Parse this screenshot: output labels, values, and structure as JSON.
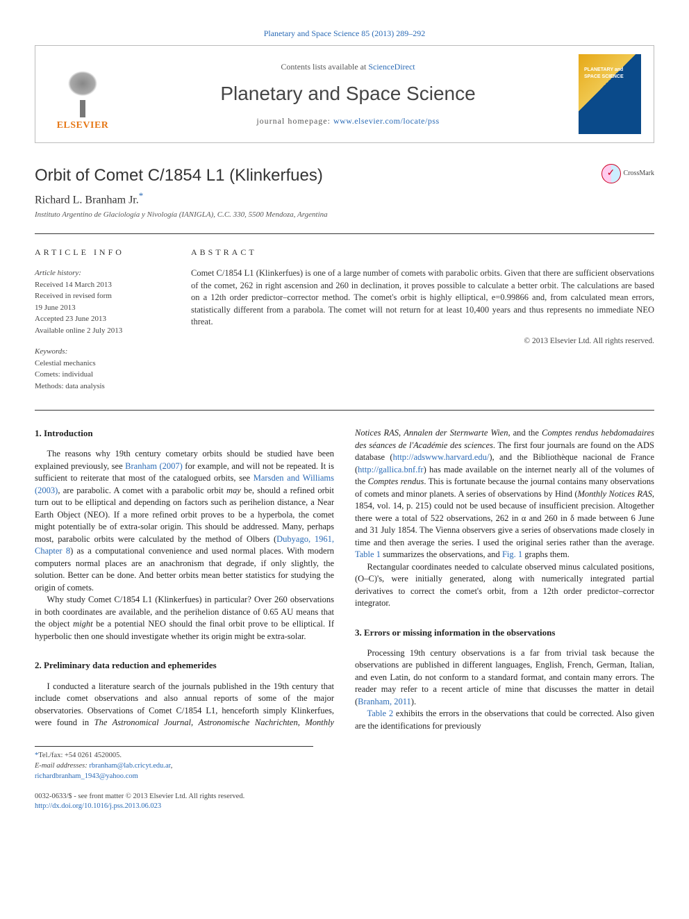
{
  "journalInfoLink": "Planetary and Space Science 85 (2013) 289–292",
  "header": {
    "publisherName": "ELSEVIER",
    "contentsPrefix": "Contents lists available at ",
    "contentsLink": "ScienceDirect",
    "journalName": "Planetary and Space Science",
    "homepagePrefix": "journal homepage: ",
    "homepageUrl": "www.elsevier.com/locate/pss"
  },
  "crossmark": "CrossMark",
  "title": "Orbit of Comet C/1854 L1 (Klinkerfues)",
  "author": "Richard L. Branham Jr.",
  "authorMarker": "*",
  "affiliation": "Instituto Argentino de Glaciología y Nivología (IANIGLA), C.C. 330, 5500 Mendoza, Argentina",
  "articleInfo": {
    "label": "ARTICLE INFO",
    "historyLabel": "Article history:",
    "history": [
      "Received 14 March 2013",
      "Received in revised form",
      "19 June 2013",
      "Accepted 23 June 2013",
      "Available online 2 July 2013"
    ],
    "keywordsLabel": "Keywords:",
    "keywords": [
      "Celestial mechanics",
      "Comets: individual",
      "Methods: data analysis"
    ]
  },
  "abstract": {
    "label": "ABSTRACT",
    "text": "Comet C/1854 L1 (Klinkerfues) is one of a large number of comets with parabolic orbits. Given that there are sufficient observations of the comet, 262 in right ascension and 260 in declination, it proves possible to calculate a better orbit. The calculations are based on a 12th order predictor–corrector method. The comet's orbit is highly elliptical, e=0.99866 and, from calculated mean errors, statistically different from a parabola. The comet will not return for at least 10,400 years and thus represents no immediate NEO threat.",
    "copyright": "© 2013 Elsevier Ltd. All rights reserved."
  },
  "sections": {
    "s1": {
      "heading": "1. Introduction",
      "p1a": "The reasons why 19th century cometary orbits should be studied have been explained previously, see ",
      "p1link1": "Branham (2007)",
      "p1b": " for example, and will not be repeated. It is sufficient to reiterate that most of the catalogued orbits, see ",
      "p1link2": "Marsden and Williams (2003)",
      "p1c": ", are parabolic. A comet with a parabolic orbit ",
      "p1may": "may",
      "p1d": " be, should a refined orbit turn out to be elliptical and depending on factors such as perihelion distance, a Near Earth Object (NEO). If a more refined orbit proves to be a hyperbola, the comet might potentially be of extra-solar origin. This should be addressed. Many, perhaps most, parabolic orbits were calculated by the method of Olbers (",
      "p1link3": "Dubyago, 1961, Chapter 8",
      "p1e": ") as a computational convenience and used normal places. With modern computers normal places are an anachronism that degrade, if only slightly, the solution. Better can be done. And better orbits mean better statistics for studying the origin of comets.",
      "p2a": "Why study Comet C/1854 L1 (Klinkerfues) in particular? Over 260 observations in both coordinates are available, and the perihelion distance of 0.65 AU means that the object ",
      "p2might": "might",
      "p2b": " be a potential NEO should the final orbit prove to be elliptical. If hyperbolic then one should investigate whether its origin might be extra-solar."
    },
    "s2": {
      "heading": "2. Preliminary data reduction and ephemerides",
      "p1": "I conducted a literature search of the journals published in the 19th century that include comet observations and also annual reports of some of the major observatories. Observations of Comet C/1854 L1, henceforth simply Klinkerfues, were found in ",
      "p1it1": "The Astronomical Journal",
      "p1s1": ", ",
      "p1it2": "Astronomische Nachrichten",
      "p1s2": ", ",
      "p1it3": "Monthly Notices RAS",
      "p1s3": ", ",
      "p1it4": "Annalen der Sternwarte Wien",
      "p1s4": ", and the ",
      "p1it5": "Comptes rendus hebdomadaires des séances de l'Académie des sciences",
      "p1s5": ". The first four journals are found on the ADS database (",
      "p1link1": "http://adswww.harvard.edu/",
      "p1s6": "), and the Bibliothèque nacional de France (",
      "p1link2": "http://gallica.bnf.fr",
      "p1s7": ") has made available on the internet nearly all of the volumes of the ",
      "p1it6": "Comptes rendus",
      "p1s8": ". This is fortunate because the journal contains many observations of comets and minor planets. A series of observations by Hind (",
      "p1it7": "Monthly Notices RAS",
      "p1s9": ", 1854, vol. 14, p. 215) could not be used because of insufficient precision. Altogether there were a total of 522 observations, 262 in α and 260 in δ made between 6 June and 31 July 1854. The Vienna observers give a series of observations made closely in time and then average the series. I used the original series rather than the average. ",
      "p1link3": "Table 1",
      "p1s10": " summarizes the observations, and ",
      "p1link4": "Fig. 1",
      "p1s11": " graphs them.",
      "p2": "Rectangular coordinates needed to calculate observed minus calculated positions, (O–C)'s, were initially generated, along with numerically integrated partial derivatives to correct the comet's orbit, from a 12th order predictor–corrector integrator."
    },
    "s3": {
      "heading": "3. Errors or missing information in the observations",
      "p1a": "Processing 19th century observations is a far from trivial task because the observations are published in different languages, English, French, German, Italian, and even Latin, do not conform to a standard format, and contain many errors. The reader may refer to a recent article of mine that discusses the matter in detail (",
      "p1link1": "Branham, 2011",
      "p1b": ").",
      "p2a": "",
      "p2link1": "Table 2",
      "p2b": " exhibits the errors in the observations that could be corrected. Also given are the identifications for previously"
    }
  },
  "footnotes": {
    "telLabel": "Tel./fax: +54 0261 4520005.",
    "emailLabel": "E-mail addresses: ",
    "email1": "rbranham@lab.cricyt.edu.ar",
    "emailSep": ", ",
    "email2": "richardbranham_1943@yahoo.com"
  },
  "footer": {
    "line1": "0032-0633/$ - see front matter © 2013 Elsevier Ltd. All rights reserved.",
    "line2": "http://dx.doi.org/10.1016/j.pss.2013.06.023"
  }
}
